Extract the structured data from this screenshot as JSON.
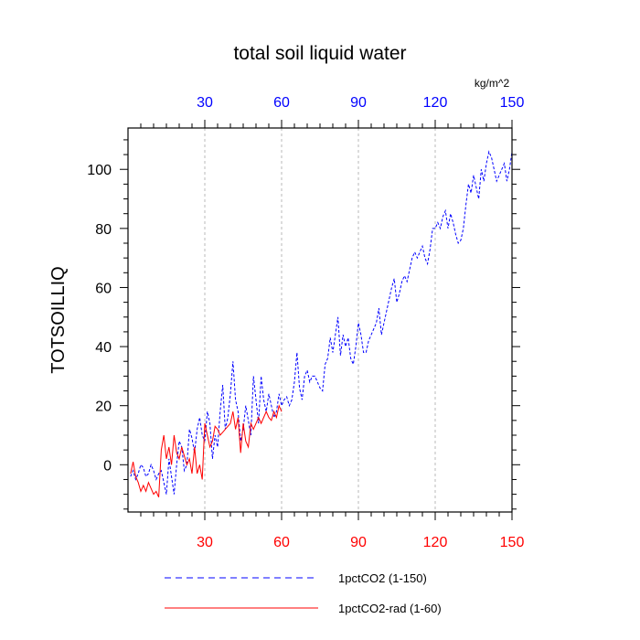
{
  "chart_data": {
    "type": "line",
    "title": "total soil liquid water",
    "xlabel": "",
    "ylabel": "TOTSOILLIQ",
    "units_label": "kg/m^2",
    "xlim": [
      0,
      150
    ],
    "ylim": [
      -16,
      114
    ],
    "x_ticks": [
      30,
      60,
      90,
      120,
      150
    ],
    "x_tick_labels": [
      "30",
      "60",
      "90",
      "120",
      "150"
    ],
    "y_ticks": [
      0,
      20,
      40,
      60,
      80,
      100
    ],
    "y_tick_labels": [
      "0",
      "20",
      "40",
      "60",
      "80",
      "100"
    ],
    "top_axis_color": "#0000ff",
    "bottom_axis_color": "#ff0000",
    "grid": "vertical dashed gray at major x ticks",
    "legend_placement": "bottom",
    "series": [
      {
        "name": "1pctCO2 (1-150)",
        "color": "#0000ff",
        "dash": "dashed",
        "x_start": 1,
        "values": [
          -4,
          -2,
          -5,
          -3,
          0,
          -1,
          -4,
          -3,
          0,
          -2,
          -5,
          -3,
          -2,
          -6,
          -10,
          2,
          -4,
          -10,
          0,
          8,
          6,
          -2,
          0,
          12,
          9,
          4,
          12,
          16,
          10,
          8,
          18,
          14,
          2,
          10,
          6,
          18,
          27,
          12,
          16,
          24,
          35,
          22,
          18,
          8,
          12,
          20,
          15,
          10,
          30,
          22,
          14,
          30,
          22,
          18,
          24,
          20,
          16,
          18,
          24,
          20,
          22,
          23,
          20,
          22,
          28,
          38,
          26,
          22,
          30,
          32,
          28,
          30,
          30,
          28,
          26,
          25,
          34,
          36,
          43,
          38,
          44,
          50,
          37,
          44,
          40,
          43,
          36,
          34,
          40,
          48,
          44,
          38,
          38,
          42,
          44,
          46,
          48,
          53,
          44,
          48,
          52,
          56,
          60,
          63,
          55,
          58,
          62,
          64,
          62,
          66,
          70,
          72,
          70,
          72,
          74,
          70,
          68,
          73,
          80,
          80,
          82,
          80,
          84,
          86,
          80,
          85,
          82,
          78,
          75,
          76,
          80,
          88,
          95,
          92,
          98,
          94,
          90,
          100,
          96,
          102,
          106,
          104,
          100,
          96,
          98,
          100,
          102,
          96,
          100,
          106
        ]
      },
      {
        "name": "1pctCO2-rad (1-60)",
        "color": "#ff0000",
        "dash": "solid",
        "x_start": 1,
        "values": [
          -3,
          1,
          -4,
          -6,
          -9,
          -7,
          -9,
          -6,
          -8,
          -10,
          -9,
          -11,
          5,
          10,
          2,
          6,
          0,
          10,
          4,
          2,
          6,
          3,
          0,
          2,
          -3,
          6,
          -3,
          0,
          -5,
          14,
          10,
          6,
          8,
          13,
          12,
          10,
          11,
          12,
          13,
          14,
          18,
          12,
          16,
          4,
          14,
          8,
          6,
          14,
          12,
          14,
          16,
          14,
          16,
          18,
          16,
          15,
          18,
          16,
          20,
          18
        ]
      }
    ]
  }
}
